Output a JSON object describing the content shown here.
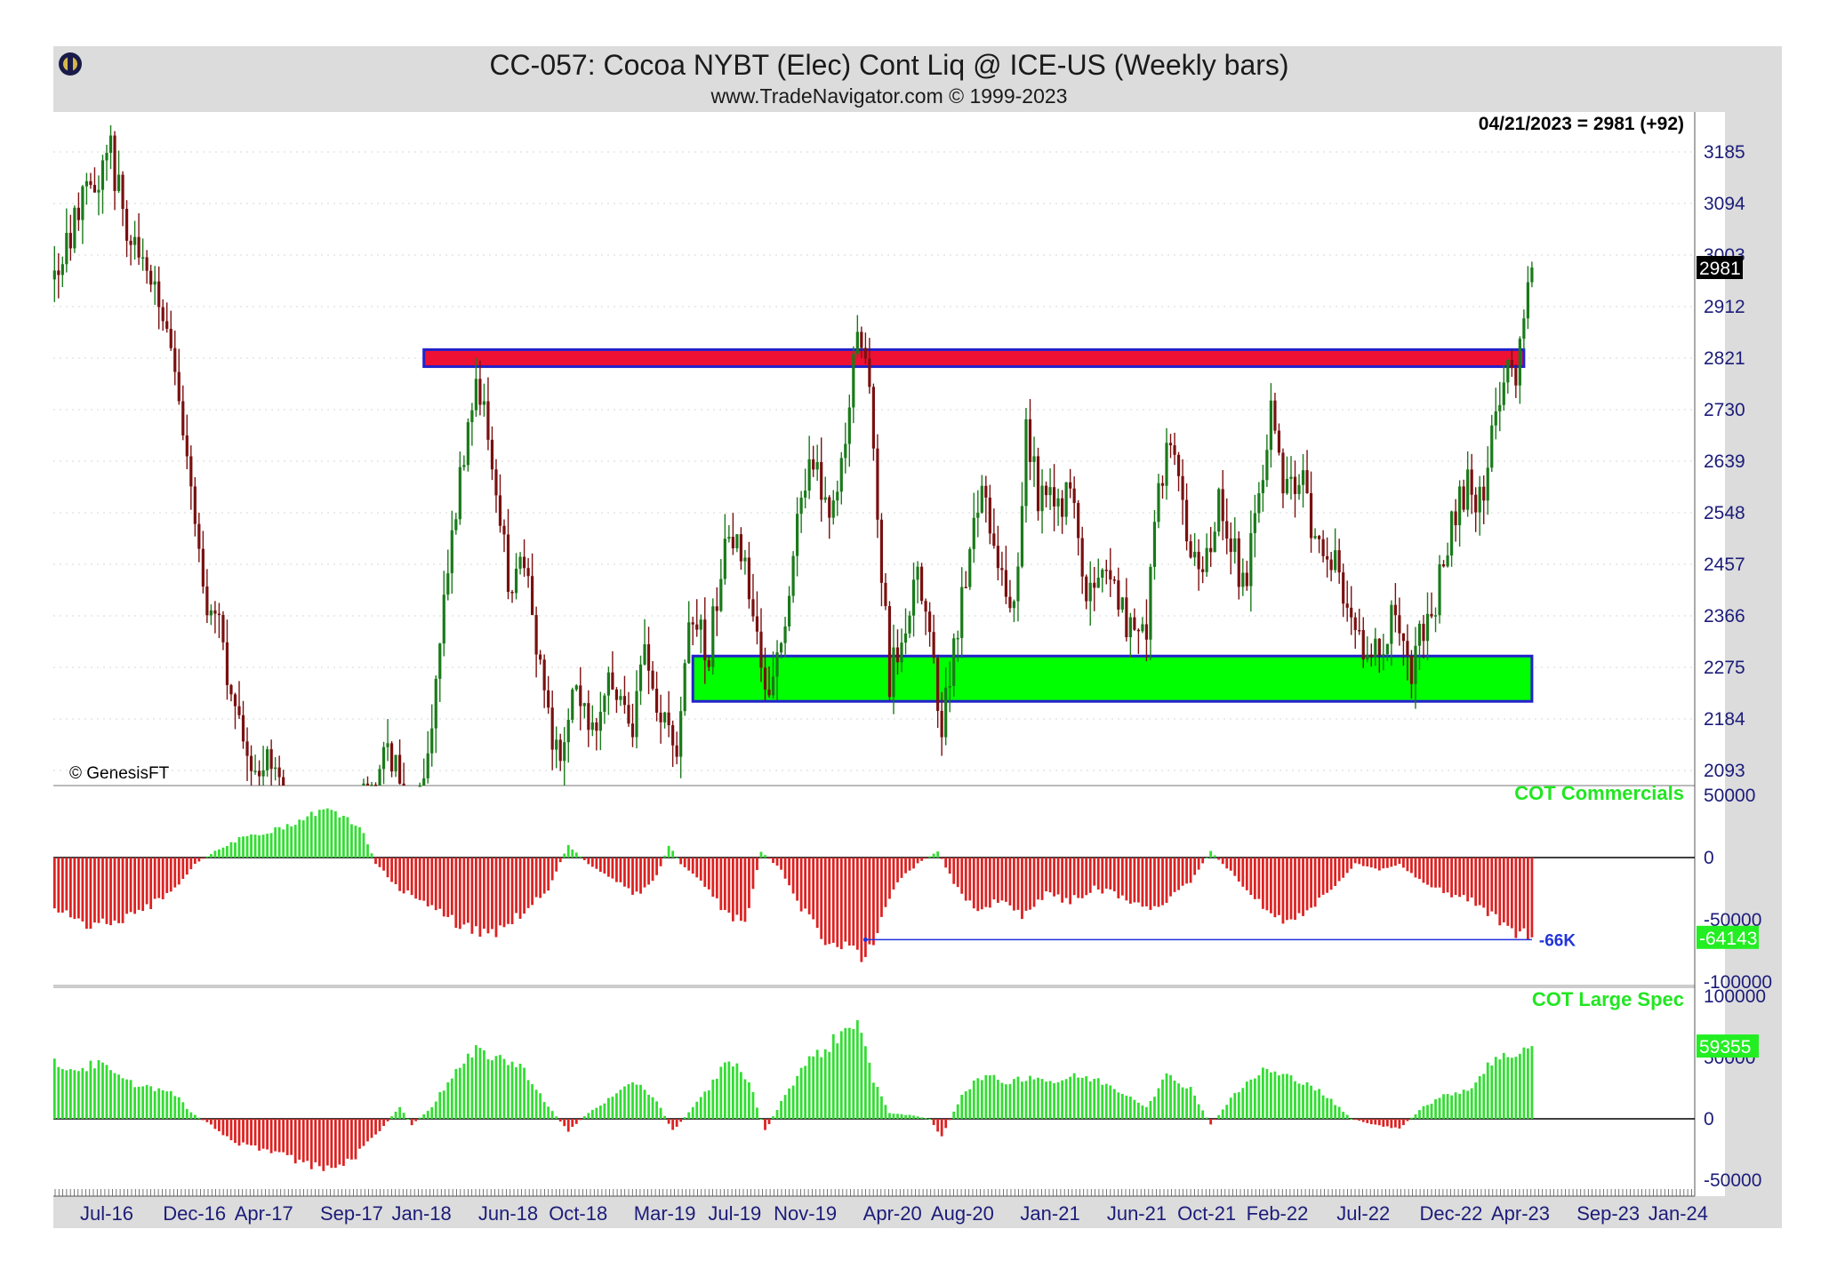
{
  "header": {
    "title": "CC-057:  Cocoa NYBT (Elec) Cont Liq @ ICE-US  (Weekly bars)",
    "subtitle": "www.TradeNavigator.com © 1999-2023"
  },
  "last_quote": "04/21/2023 = 2981 (+92)",
  "watermark": "© GenesisFT",
  "colors": {
    "up_bar": "#1a7a1a",
    "down_bar": "#7a1010",
    "resistance_fill": "#ee1133",
    "support_fill": "#00ff00",
    "zone_border": "#2222cc",
    "positive_hist": "#33dd33",
    "negative_hist": "#dd2222",
    "axis_text": "#1c1c7a"
  },
  "chart_data": [
    {
      "type": "candlestick",
      "title": "CC-057:  Cocoa NYBT (Elec) Cont Liq @ ICE-US  (Weekly bars)",
      "y_ticks": [
        3185,
        3094,
        3003,
        2912,
        2821,
        2730,
        2639,
        2548,
        2457,
        2366,
        2275,
        2184,
        2093
      ],
      "ylim": [
        2060,
        3230
      ],
      "last_value": 2981,
      "last_value_label": "2981",
      "zones": [
        {
          "name": "resistance",
          "from_date": "2018-01-05",
          "to_date": "2023-04-07",
          "low": 2806,
          "high": 2836,
          "color": "#ee1133"
        },
        {
          "name": "support",
          "from_date": "2019-04-19",
          "to_date": "2023-04-21",
          "low": 2215,
          "high": 2295,
          "color": "#00ff00"
        }
      ],
      "price_anchors": [
        [
          "2016-04-01",
          2960
        ],
        [
          "2016-05-13",
          3080
        ],
        [
          "2016-06-10",
          3120
        ],
        [
          "2016-07-08",
          3180
        ],
        [
          "2016-08-05",
          3050
        ],
        [
          "2016-09-02",
          3020
        ],
        [
          "2016-10-07",
          2880
        ],
        [
          "2016-11-04",
          2760
        ],
        [
          "2016-11-25",
          2580
        ],
        [
          "2016-12-16",
          2420
        ],
        [
          "2017-01-13",
          2340
        ],
        [
          "2017-02-10",
          2200
        ],
        [
          "2017-03-10",
          2100
        ],
        [
          "2017-04-07",
          2120
        ],
        [
          "2017-06-02",
          1950
        ],
        [
          "2017-08-04",
          1920
        ],
        [
          "2017-10-06",
          2080
        ],
        [
          "2017-11-10",
          2120
        ],
        [
          "2017-12-15",
          1950
        ],
        [
          "2018-01-19",
          2150
        ],
        [
          "2018-02-09",
          2400
        ],
        [
          "2018-03-09",
          2620
        ],
        [
          "2018-04-06",
          2800
        ],
        [
          "2018-05-04",
          2650
        ],
        [
          "2018-06-01",
          2420
        ],
        [
          "2018-06-29",
          2480
        ],
        [
          "2018-08-03",
          2200
        ],
        [
          "2018-08-31",
          2120
        ],
        [
          "2018-09-28",
          2250
        ],
        [
          "2018-10-26",
          2150
        ],
        [
          "2018-11-30",
          2260
        ],
        [
          "2018-12-28",
          2150
        ],
        [
          "2019-01-25",
          2290
        ],
        [
          "2019-02-22",
          2200
        ],
        [
          "2019-03-22",
          2150
        ],
        [
          "2019-04-19",
          2380
        ],
        [
          "2019-05-17",
          2300
        ],
        [
          "2019-06-14",
          2500
        ],
        [
          "2019-07-05",
          2520
        ],
        [
          "2019-08-02",
          2350
        ],
        [
          "2019-08-23",
          2220
        ],
        [
          "2019-09-20",
          2320
        ],
        [
          "2019-10-18",
          2520
        ],
        [
          "2019-11-15",
          2650
        ],
        [
          "2019-12-13",
          2520
        ],
        [
          "2020-01-10",
          2680
        ],
        [
          "2020-01-31",
          2860
        ],
        [
          "2020-02-21",
          2800
        ],
        [
          "2020-03-13",
          2450
        ],
        [
          "2020-03-27",
          2250
        ],
        [
          "2020-04-17",
          2330
        ],
        [
          "2020-05-15",
          2420
        ],
        [
          "2020-06-12",
          2280
        ],
        [
          "2020-06-26",
          2160
        ],
        [
          "2020-07-10",
          2250
        ],
        [
          "2020-08-07",
          2450
        ],
        [
          "2020-09-04",
          2600
        ],
        [
          "2020-10-02",
          2450
        ],
        [
          "2020-10-30",
          2360
        ],
        [
          "2020-11-20",
          2700
        ],
        [
          "2020-12-11",
          2580
        ],
        [
          "2021-01-08",
          2570
        ],
        [
          "2021-02-05",
          2580
        ],
        [
          "2021-03-05",
          2400
        ],
        [
          "2021-04-02",
          2460
        ],
        [
          "2021-04-30",
          2390
        ],
        [
          "2021-05-28",
          2330
        ],
        [
          "2021-06-18",
          2320
        ],
        [
          "2021-07-09",
          2620
        ],
        [
          "2021-08-06",
          2660
        ],
        [
          "2021-08-27",
          2500
        ],
        [
          "2021-09-24",
          2420
        ],
        [
          "2021-10-22",
          2580
        ],
        [
          "2021-11-12",
          2500
        ],
        [
          "2021-12-03",
          2420
        ],
        [
          "2021-12-31",
          2550
        ],
        [
          "2022-01-21",
          2740
        ],
        [
          "2022-02-11",
          2560
        ],
        [
          "2022-03-11",
          2620
        ],
        [
          "2022-04-08",
          2500
        ],
        [
          "2022-05-06",
          2480
        ],
        [
          "2022-06-03",
          2400
        ],
        [
          "2022-07-01",
          2300
        ],
        [
          "2022-07-29",
          2310
        ],
        [
          "2022-08-26",
          2370
        ],
        [
          "2022-09-23",
          2260
        ],
        [
          "2022-10-14",
          2350
        ],
        [
          "2022-11-04",
          2400
        ],
        [
          "2022-12-02",
          2540
        ],
        [
          "2022-12-30",
          2600
        ],
        [
          "2023-01-20",
          2560
        ],
        [
          "2023-02-10",
          2670
        ],
        [
          "2023-03-03",
          2780
        ],
        [
          "2023-03-24",
          2800
        ],
        [
          "2023-04-07",
          2900
        ],
        [
          "2023-04-21",
          2981
        ]
      ]
    },
    {
      "type": "bar",
      "title": "COT Commercials",
      "y_ticks": [
        50000,
        0,
        -50000,
        -100000
      ],
      "last_value": -64143,
      "last_value_label": "-64143",
      "reference_line": {
        "value": -66000,
        "label": "-66K",
        "from_date": "2020-02-14",
        "to_date": "2023-04-21"
      },
      "anchors": [
        [
          "2016-04-01",
          -40000
        ],
        [
          "2016-06-03",
          -55000
        ],
        [
          "2016-08-05",
          -50000
        ],
        [
          "2016-09-30",
          -35000
        ],
        [
          "2016-11-04",
          -20000
        ],
        [
          "2016-12-02",
          -5000
        ],
        [
          "2017-01-06",
          5000
        ],
        [
          "2017-02-17",
          15000
        ],
        [
          "2017-04-07",
          20000
        ],
        [
          "2017-06-02",
          30000
        ],
        [
          "2017-07-07",
          38000
        ],
        [
          "2017-08-11",
          35000
        ],
        [
          "2017-09-22",
          20000
        ],
        [
          "2017-10-13",
          -5000
        ],
        [
          "2017-11-24",
          -25000
        ],
        [
          "2018-01-05",
          -35000
        ],
        [
          "2018-02-23",
          -50000
        ],
        [
          "2018-04-13",
          -62000
        ],
        [
          "2018-05-25",
          -58000
        ],
        [
          "2018-07-06",
          -40000
        ],
        [
          "2018-08-10",
          -25000
        ],
        [
          "2018-09-14",
          10000
        ],
        [
          "2018-10-19",
          -5000
        ],
        [
          "2018-12-07",
          -20000
        ],
        [
          "2019-01-11",
          -30000
        ],
        [
          "2019-02-15",
          -15000
        ],
        [
          "2019-03-08",
          10000
        ],
        [
          "2019-03-29",
          -5000
        ],
        [
          "2019-05-03",
          -20000
        ],
        [
          "2019-06-07",
          -40000
        ],
        [
          "2019-07-19",
          -55000
        ],
        [
          "2019-08-16",
          5000
        ],
        [
          "2019-09-20",
          -10000
        ],
        [
          "2019-10-25",
          -40000
        ],
        [
          "2019-12-06",
          -65000
        ],
        [
          "2020-01-17",
          -75000
        ],
        [
          "2020-02-14",
          -85000
        ],
        [
          "2020-03-13",
          -50000
        ],
        [
          "2020-04-10",
          -20000
        ],
        [
          "2020-05-15",
          -5000
        ],
        [
          "2020-06-19",
          5000
        ],
        [
          "2020-07-17",
          -20000
        ],
        [
          "2020-08-21",
          -40000
        ],
        [
          "2020-10-02",
          -35000
        ],
        [
          "2020-11-13",
          -45000
        ],
        [
          "2020-12-25",
          -30000
        ],
        [
          "2021-02-05",
          -35000
        ],
        [
          "2021-03-19",
          -25000
        ],
        [
          "2021-04-30",
          -30000
        ],
        [
          "2021-06-11",
          -40000
        ],
        [
          "2021-07-23",
          -35000
        ],
        [
          "2021-09-03",
          -20000
        ],
        [
          "2021-10-08",
          5000
        ],
        [
          "2021-11-19",
          -15000
        ],
        [
          "2022-01-07",
          -40000
        ],
        [
          "2022-02-11",
          -50000
        ],
        [
          "2022-03-25",
          -45000
        ],
        [
          "2022-05-06",
          -25000
        ],
        [
          "2022-06-17",
          -5000
        ],
        [
          "2022-07-29",
          -10000
        ],
        [
          "2022-09-02",
          -5000
        ],
        [
          "2022-10-14",
          -20000
        ],
        [
          "2022-11-25",
          -30000
        ],
        [
          "2023-01-06",
          -35000
        ],
        [
          "2023-02-10",
          -45000
        ],
        [
          "2023-03-10",
          -60000
        ],
        [
          "2023-04-21",
          -64143
        ]
      ]
    },
    {
      "type": "bar",
      "title": "COT Large Spec",
      "y_ticks": [
        100000,
        50000,
        0,
        -50000
      ],
      "last_value": 59355,
      "last_value_label": "59355",
      "anchors": [
        [
          "2016-04-01",
          45000
        ],
        [
          "2016-05-06",
          40000
        ],
        [
          "2016-06-17",
          45000
        ],
        [
          "2016-08-05",
          30000
        ],
        [
          "2016-09-23",
          25000
        ],
        [
          "2016-10-28",
          20000
        ],
        [
          "2016-11-25",
          5000
        ],
        [
          "2016-12-30",
          -5000
        ],
        [
          "2017-02-10",
          -20000
        ],
        [
          "2017-04-07",
          -25000
        ],
        [
          "2017-06-02",
          -35000
        ],
        [
          "2017-07-21",
          -42000
        ],
        [
          "2017-09-08",
          -30000
        ],
        [
          "2017-10-20",
          -10000
        ],
        [
          "2017-11-24",
          10000
        ],
        [
          "2017-12-15",
          -5000
        ],
        [
          "2018-01-19",
          10000
        ],
        [
          "2018-02-23",
          35000
        ],
        [
          "2018-04-06",
          55000
        ],
        [
          "2018-05-18",
          50000
        ],
        [
          "2018-06-29",
          40000
        ],
        [
          "2018-08-10",
          10000
        ],
        [
          "2018-09-14",
          -10000
        ],
        [
          "2018-10-19",
          5000
        ],
        [
          "2018-12-07",
          20000
        ],
        [
          "2019-01-11",
          30000
        ],
        [
          "2019-02-15",
          15000
        ],
        [
          "2019-03-15",
          -10000
        ],
        [
          "2019-04-12",
          5000
        ],
        [
          "2019-05-17",
          25000
        ],
        [
          "2019-06-21",
          50000
        ],
        [
          "2019-07-26",
          30000
        ],
        [
          "2019-08-23",
          -10000
        ],
        [
          "2019-09-27",
          20000
        ],
        [
          "2019-11-01",
          45000
        ],
        [
          "2019-12-13",
          60000
        ],
        [
          "2020-01-17",
          75000
        ],
        [
          "2020-01-31",
          85000
        ],
        [
          "2020-02-28",
          30000
        ],
        [
          "2020-03-27",
          5000
        ],
        [
          "2020-05-01",
          3000
        ],
        [
          "2020-06-05",
          0
        ],
        [
          "2020-06-26",
          -15000
        ],
        [
          "2020-07-31",
          20000
        ],
        [
          "2020-09-04",
          35000
        ],
        [
          "2020-10-16",
          30000
        ],
        [
          "2020-11-27",
          35000
        ],
        [
          "2021-01-08",
          30000
        ],
        [
          "2021-02-19",
          35000
        ],
        [
          "2021-04-02",
          30000
        ],
        [
          "2021-05-14",
          20000
        ],
        [
          "2021-06-18",
          10000
        ],
        [
          "2021-07-23",
          35000
        ],
        [
          "2021-09-03",
          25000
        ],
        [
          "2021-10-08",
          -5000
        ],
        [
          "2021-11-19",
          20000
        ],
        [
          "2022-01-07",
          40000
        ],
        [
          "2022-02-11",
          35000
        ],
        [
          "2022-03-25",
          30000
        ],
        [
          "2022-05-06",
          15000
        ],
        [
          "2022-06-10",
          0
        ],
        [
          "2022-07-22",
          -5000
        ],
        [
          "2022-09-02",
          -8000
        ],
        [
          "2022-10-14",
          10000
        ],
        [
          "2022-11-25",
          20000
        ],
        [
          "2023-01-06",
          25000
        ],
        [
          "2023-02-03",
          45000
        ],
        [
          "2023-03-03",
          50000
        ],
        [
          "2023-04-21",
          59355
        ]
      ]
    }
  ],
  "x_axis": {
    "ticks": [
      {
        "label": "Jul-16",
        "date": "2016-07-01"
      },
      {
        "label": "Dec-16",
        "date": "2016-12-01"
      },
      {
        "label": "Apr-17",
        "date": "2017-04-01"
      },
      {
        "label": "Sep-17",
        "date": "2017-09-01"
      },
      {
        "label": "Jan-18",
        "date": "2018-01-01"
      },
      {
        "label": "Jun-18",
        "date": "2018-06-01"
      },
      {
        "label": "Oct-18",
        "date": "2018-10-01"
      },
      {
        "label": "Mar-19",
        "date": "2019-03-01"
      },
      {
        "label": "Jul-19",
        "date": "2019-07-01"
      },
      {
        "label": "Nov-19",
        "date": "2019-11-01"
      },
      {
        "label": "Apr-20",
        "date": "2020-04-01"
      },
      {
        "label": "Aug-20",
        "date": "2020-08-01"
      },
      {
        "label": "Jan-21",
        "date": "2021-01-01"
      },
      {
        "label": "Jun-21",
        "date": "2021-06-01"
      },
      {
        "label": "Oct-21",
        "date": "2021-10-01"
      },
      {
        "label": "Feb-22",
        "date": "2022-02-01"
      },
      {
        "label": "Jul-22",
        "date": "2022-07-01"
      },
      {
        "label": "Dec-22",
        "date": "2022-12-01"
      },
      {
        "label": "Apr-23",
        "date": "2023-04-01"
      },
      {
        "label": "Sep-23",
        "date": "2023-09-01"
      },
      {
        "label": "Jan-24",
        "date": "2024-01-01"
      }
    ]
  }
}
